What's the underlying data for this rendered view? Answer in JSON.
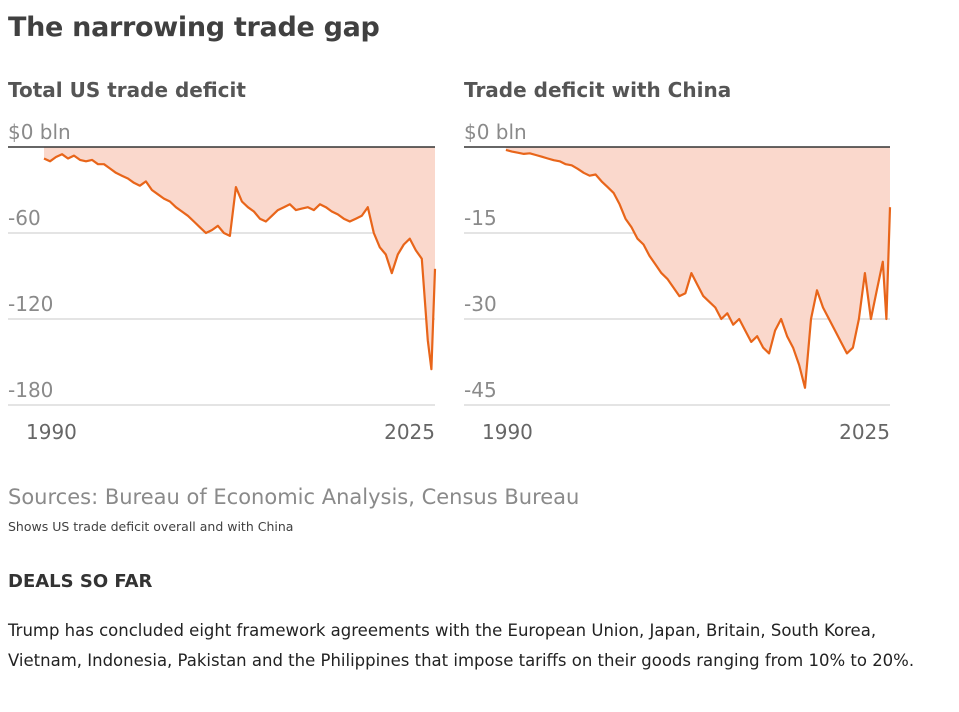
{
  "title": "The narrowing trade gap",
  "sources": "Sources: Bureau of Economic Analysis, Census Bureau",
  "note": "Shows US trade deficit overall and with China",
  "deals": {
    "heading": "DEALS SO FAR",
    "body": "Trump has concluded eight framework agreements with the European Union, Japan, Britain, South Korea, Vietnam, Indonesia, Pakistan and the Philippines that impose tariffs on their goods ranging from 10% to 20%."
  },
  "colors": {
    "line": "#e8651a",
    "fill": "#fad8cc",
    "grid": "#c8c8c8",
    "zero_line": "#333333"
  },
  "chart_data": [
    {
      "type": "area",
      "title": "Total US trade deficit",
      "x_tick_labels": [
        "1990",
        "2025"
      ],
      "y_tick_labels": [
        "$0 bln",
        "-60",
        "-120",
        "-180"
      ],
      "y_ticks": [
        0,
        -60,
        -120,
        -180
      ],
      "ylim": [
        -180,
        0
      ],
      "xlim": [
        1990,
        2025.6
      ],
      "grid": true,
      "series": [
        {
          "points": [
            [
              1993,
              -8
            ],
            [
              1993.5,
              -10
            ],
            [
              1994,
              -7
            ],
            [
              1994.5,
              -5
            ],
            [
              1995,
              -8
            ],
            [
              1995.5,
              -6
            ],
            [
              1996,
              -9
            ],
            [
              1996.5,
              -10
            ],
            [
              1997,
              -9
            ],
            [
              1997.5,
              -12
            ],
            [
              1998,
              -12
            ],
            [
              1998.5,
              -15
            ],
            [
              1999,
              -18
            ],
            [
              1999.5,
              -20
            ],
            [
              2000,
              -22
            ],
            [
              2000.5,
              -25
            ],
            [
              2001,
              -27
            ],
            [
              2001.5,
              -24
            ],
            [
              2002,
              -30
            ],
            [
              2002.5,
              -33
            ],
            [
              2003,
              -36
            ],
            [
              2003.5,
              -38
            ],
            [
              2004,
              -42
            ],
            [
              2004.5,
              -45
            ],
            [
              2005,
              -48
            ],
            [
              2005.5,
              -52
            ],
            [
              2006,
              -56
            ],
            [
              2006.5,
              -60
            ],
            [
              2007,
              -58
            ],
            [
              2007.5,
              -55
            ],
            [
              2008,
              -60
            ],
            [
              2008.5,
              -62
            ],
            [
              2009,
              -28
            ],
            [
              2009.5,
              -38
            ],
            [
              2010,
              -42
            ],
            [
              2010.5,
              -45
            ],
            [
              2011,
              -50
            ],
            [
              2011.5,
              -52
            ],
            [
              2012,
              -48
            ],
            [
              2012.5,
              -44
            ],
            [
              2013,
              -42
            ],
            [
              2013.5,
              -40
            ],
            [
              2014,
              -44
            ],
            [
              2014.5,
              -43
            ],
            [
              2015,
              -42
            ],
            [
              2015.5,
              -44
            ],
            [
              2016,
              -40
            ],
            [
              2016.5,
              -42
            ],
            [
              2017,
              -45
            ],
            [
              2017.5,
              -47
            ],
            [
              2018,
              -50
            ],
            [
              2018.5,
              -52
            ],
            [
              2019,
              -50
            ],
            [
              2019.5,
              -48
            ],
            [
              2020,
              -42
            ],
            [
              2020.5,
              -60
            ],
            [
              2021,
              -70
            ],
            [
              2021.5,
              -75
            ],
            [
              2022,
              -88
            ],
            [
              2022.5,
              -75
            ],
            [
              2023,
              -68
            ],
            [
              2023.5,
              -64
            ],
            [
              2024,
              -72
            ],
            [
              2024.5,
              -78
            ],
            [
              2025,
              -135
            ],
            [
              2025.3,
              -155
            ],
            [
              2025.6,
              -85
            ]
          ]
        }
      ]
    },
    {
      "type": "area",
      "title": "Trade deficit with China",
      "x_tick_labels": [
        "1990",
        "2025"
      ],
      "y_tick_labels": [
        "$0 bln",
        "-15",
        "-30",
        "-45"
      ],
      "y_ticks": [
        0,
        -15,
        -30,
        -45
      ],
      "ylim": [
        -45,
        0
      ],
      "xlim": [
        1990,
        2025.6
      ],
      "grid": true,
      "series": [
        {
          "points": [
            [
              1993.5,
              -0.5
            ],
            [
              1994,
              -0.8
            ],
            [
              1994.5,
              -1.0
            ],
            [
              1995,
              -1.2
            ],
            [
              1995.5,
              -1.1
            ],
            [
              1996,
              -1.4
            ],
            [
              1996.5,
              -1.7
            ],
            [
              1997,
              -2.0
            ],
            [
              1997.5,
              -2.3
            ],
            [
              1998,
              -2.5
            ],
            [
              1998.5,
              -3.0
            ],
            [
              1999,
              -3.2
            ],
            [
              1999.5,
              -3.8
            ],
            [
              2000,
              -4.5
            ],
            [
              2000.5,
              -5.0
            ],
            [
              2001,
              -4.8
            ],
            [
              2001.5,
              -6.0
            ],
            [
              2002,
              -7.0
            ],
            [
              2002.5,
              -8.0
            ],
            [
              2003,
              -10.0
            ],
            [
              2003.5,
              -12.5
            ],
            [
              2004,
              -14.0
            ],
            [
              2004.5,
              -16.0
            ],
            [
              2005,
              -17.0
            ],
            [
              2005.5,
              -19.0
            ],
            [
              2006,
              -20.5
            ],
            [
              2006.5,
              -22.0
            ],
            [
              2007,
              -23.0
            ],
            [
              2007.5,
              -24.5
            ],
            [
              2008,
              -26.0
            ],
            [
              2008.5,
              -25.5
            ],
            [
              2009,
              -22.0
            ],
            [
              2009.5,
              -24.0
            ],
            [
              2010,
              -26.0
            ],
            [
              2010.5,
              -27.0
            ],
            [
              2011,
              -28.0
            ],
            [
              2011.5,
              -30.0
            ],
            [
              2012,
              -29.0
            ],
            [
              2012.5,
              -31.0
            ],
            [
              2013,
              -30.0
            ],
            [
              2013.5,
              -32.0
            ],
            [
              2014,
              -34.0
            ],
            [
              2014.5,
              -33.0
            ],
            [
              2015,
              -35.0
            ],
            [
              2015.5,
              -36.0
            ],
            [
              2016,
              -32.0
            ],
            [
              2016.5,
              -30.0
            ],
            [
              2017,
              -33.0
            ],
            [
              2017.5,
              -35.0
            ],
            [
              2018,
              -38.0
            ],
            [
              2018.5,
              -42.0
            ],
            [
              2019,
              -30.0
            ],
            [
              2019.5,
              -25.0
            ],
            [
              2020,
              -28.0
            ],
            [
              2020.5,
              -30.0
            ],
            [
              2021,
              -32.0
            ],
            [
              2021.5,
              -34.0
            ],
            [
              2022,
              -36.0
            ],
            [
              2022.5,
              -35.0
            ],
            [
              2023,
              -30.0
            ],
            [
              2023.5,
              -22.0
            ],
            [
              2024,
              -30.0
            ],
            [
              2024.5,
              -25.0
            ],
            [
              2025,
              -20.0
            ],
            [
              2025.3,
              -30.0
            ],
            [
              2025.6,
              -10.5
            ]
          ]
        }
      ]
    }
  ]
}
